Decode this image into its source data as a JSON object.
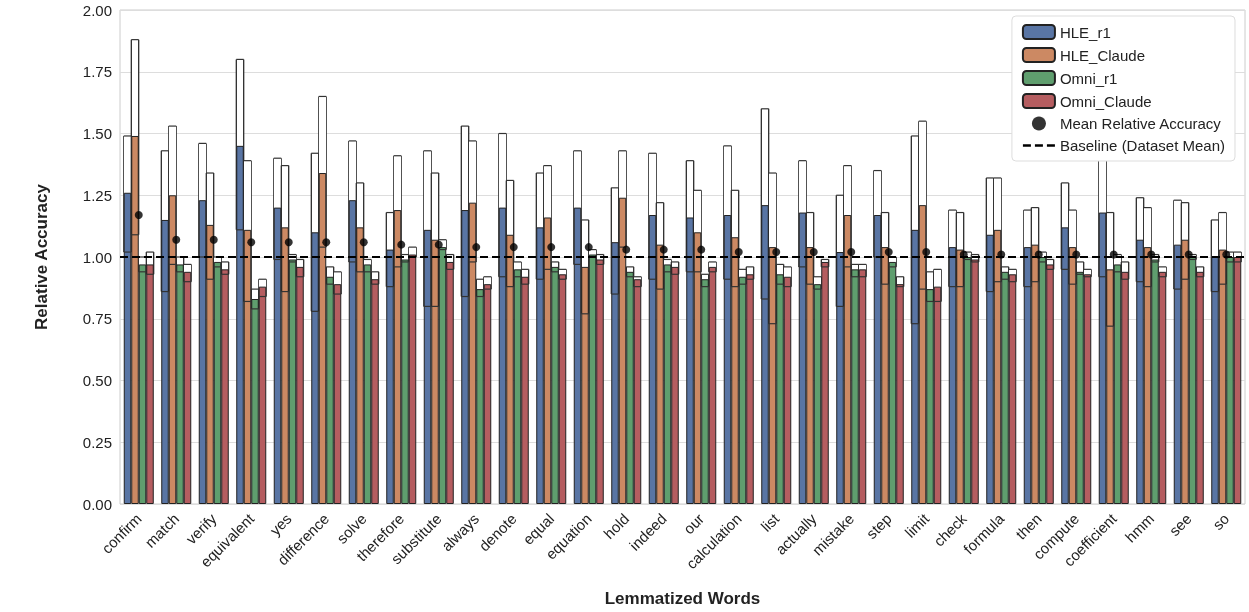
{
  "chart_data": {
    "type": "bar",
    "xlabel": "Lemmatized Words",
    "ylabel": "Relative Accuracy",
    "categories": [
      "confirm",
      "match",
      "verify",
      "equivalent",
      "yes",
      "difference",
      "solve",
      "therefore",
      "substitute",
      "always",
      "denote",
      "equal",
      "equation",
      "hold",
      "indeed",
      "our",
      "calculation",
      "list",
      "actually",
      "mistake",
      "step",
      "limit",
      "check",
      "formula",
      "then",
      "compute",
      "coefficient",
      "hmm",
      "see",
      "so"
    ],
    "series": [
      {
        "name": "HLE_r1",
        "color": "#5975a4",
        "values": [
          1.26,
          1.15,
          1.23,
          1.45,
          1.2,
          1.1,
          1.23,
          1.03,
          1.11,
          1.19,
          1.2,
          1.12,
          1.2,
          1.06,
          1.17,
          1.16,
          1.17,
          1.21,
          1.18,
          1.02,
          1.17,
          1.11,
          1.04,
          1.09,
          1.04,
          1.12,
          1.18,
          1.07,
          1.05,
          1.0
        ],
        "errors": [
          [
            1.02,
            1.49
          ],
          [
            0.86,
            1.43
          ],
          [
            1.0,
            1.46
          ],
          [
            1.11,
            1.8
          ],
          [
            0.99,
            1.4
          ],
          [
            0.78,
            1.42
          ],
          [
            0.98,
            1.47
          ],
          [
            0.88,
            1.18
          ],
          [
            0.8,
            1.43
          ],
          [
            0.84,
            1.53
          ],
          [
            0.92,
            1.5
          ],
          [
            0.91,
            1.34
          ],
          [
            0.97,
            1.43
          ],
          [
            0.85,
            1.28
          ],
          [
            0.91,
            1.42
          ],
          [
            0.94,
            1.39
          ],
          [
            0.91,
            1.45
          ],
          [
            0.83,
            1.6
          ],
          [
            0.96,
            1.39
          ],
          [
            0.8,
            1.25
          ],
          [
            1.0,
            1.35
          ],
          [
            0.73,
            1.49
          ],
          [
            0.88,
            1.19
          ],
          [
            0.86,
            1.32
          ],
          [
            0.88,
            1.19
          ],
          [
            0.95,
            1.3
          ],
          [
            0.92,
            1.45
          ],
          [
            0.9,
            1.24
          ],
          [
            0.87,
            1.23
          ],
          [
            0.86,
            1.15
          ]
        ]
      },
      {
        "name": "HLE_Claude",
        "color": "#cc8963",
        "values": [
          1.49,
          1.25,
          1.13,
          1.11,
          1.12,
          1.34,
          1.12,
          1.19,
          1.07,
          1.22,
          1.09,
          1.16,
          0.96,
          1.24,
          1.05,
          1.1,
          1.08,
          1.04,
          1.04,
          1.17,
          1.04,
          1.21,
          1.03,
          1.11,
          1.05,
          1.04,
          0.95,
          1.04,
          1.07,
          1.03
        ],
        "errors": [
          [
            1.09,
            1.88
          ],
          [
            0.97,
            1.53
          ],
          [
            0.91,
            1.34
          ],
          [
            0.82,
            1.39
          ],
          [
            0.86,
            1.37
          ],
          [
            1.04,
            1.65
          ],
          [
            0.94,
            1.3
          ],
          [
            0.96,
            1.41
          ],
          [
            0.8,
            1.34
          ],
          [
            0.98,
            1.47
          ],
          [
            0.88,
            1.31
          ],
          [
            0.95,
            1.37
          ],
          [
            0.77,
            1.15
          ],
          [
            1.04,
            1.43
          ],
          [
            0.87,
            1.22
          ],
          [
            0.94,
            1.27
          ],
          [
            0.88,
            1.27
          ],
          [
            0.73,
            1.34
          ],
          [
            0.89,
            1.18
          ],
          [
            0.96,
            1.37
          ],
          [
            0.89,
            1.18
          ],
          [
            0.87,
            1.55
          ],
          [
            0.88,
            1.18
          ],
          [
            0.9,
            1.32
          ],
          [
            0.9,
            1.2
          ],
          [
            0.89,
            1.19
          ],
          [
            0.72,
            1.18
          ],
          [
            0.88,
            1.2
          ],
          [
            0.91,
            1.22
          ],
          [
            0.89,
            1.18
          ]
        ]
      },
      {
        "name": "Omni_r1",
        "color": "#5f9e6e",
        "values": [
          0.97,
          0.97,
          0.98,
          0.83,
          0.99,
          0.92,
          0.97,
          0.99,
          1.04,
          0.87,
          0.95,
          0.96,
          1.01,
          0.94,
          0.97,
          0.91,
          0.92,
          0.93,
          0.89,
          0.95,
          0.98,
          0.87,
          1.0,
          0.94,
          1.0,
          0.94,
          0.97,
          0.99,
          1.0,
          1.0
        ],
        "errors": [
          [
            0.94,
            1.0
          ],
          [
            0.94,
            1.0
          ],
          [
            0.96,
            1.0
          ],
          [
            0.79,
            0.87
          ],
          [
            0.98,
            1.01
          ],
          [
            0.89,
            0.96
          ],
          [
            0.94,
            0.99
          ],
          [
            0.98,
            1.01
          ],
          [
            1.03,
            1.07
          ],
          [
            0.84,
            0.91
          ],
          [
            0.92,
            0.98
          ],
          [
            0.94,
            0.98
          ],
          [
            1.0,
            1.03
          ],
          [
            0.92,
            0.96
          ],
          [
            0.94,
            0.99
          ],
          [
            0.88,
            0.93
          ],
          [
            0.89,
            0.95
          ],
          [
            0.89,
            0.97
          ],
          [
            0.87,
            0.92
          ],
          [
            0.92,
            0.97
          ],
          [
            0.96,
            1.0
          ],
          [
            0.82,
            0.94
          ],
          [
            0.99,
            1.02
          ],
          [
            0.91,
            0.96
          ],
          [
            0.98,
            1.02
          ],
          [
            0.93,
            0.98
          ],
          [
            0.94,
            1.01
          ],
          [
            0.98,
            1.01
          ],
          [
            0.99,
            1.01
          ],
          [
            0.98,
            1.02
          ]
        ]
      },
      {
        "name": "Omni_Claude",
        "color": "#b55d60",
        "values": [
          0.97,
          0.94,
          0.95,
          0.88,
          0.96,
          0.89,
          0.91,
          1.01,
          0.98,
          0.89,
          0.92,
          0.93,
          0.99,
          0.91,
          0.96,
          0.96,
          0.93,
          0.92,
          0.98,
          0.95,
          0.89,
          0.88,
          0.99,
          0.93,
          0.97,
          0.93,
          0.94,
          0.94,
          0.94,
          1.0
        ],
        "errors": [
          [
            0.93,
            1.02
          ],
          [
            0.9,
            0.97
          ],
          [
            0.93,
            0.98
          ],
          [
            0.84,
            0.91
          ],
          [
            0.92,
            0.99
          ],
          [
            0.85,
            0.94
          ],
          [
            0.89,
            0.94
          ],
          [
            1.0,
            1.04
          ],
          [
            0.95,
            1.01
          ],
          [
            0.87,
            0.92
          ],
          [
            0.89,
            0.95
          ],
          [
            0.91,
            0.95
          ],
          [
            0.97,
            1.01
          ],
          [
            0.88,
            0.92
          ],
          [
            0.93,
            0.98
          ],
          [
            0.94,
            0.98
          ],
          [
            0.91,
            0.96
          ],
          [
            0.88,
            0.96
          ],
          [
            0.96,
            0.99
          ],
          [
            0.92,
            0.97
          ],
          [
            0.88,
            0.92
          ],
          [
            0.82,
            0.95
          ],
          [
            0.98,
            1.01
          ],
          [
            0.9,
            0.95
          ],
          [
            0.95,
            0.99
          ],
          [
            0.92,
            0.95
          ],
          [
            0.91,
            0.98
          ],
          [
            0.92,
            0.96
          ],
          [
            0.92,
            0.96
          ],
          [
            0.98,
            1.02
          ]
        ]
      },
      {
        "name": "Mean Relative Accuracy",
        "type": "scatter",
        "marker": "circle",
        "color": "#000000",
        "x": [
          "confirm",
          "match",
          "verify",
          "equivalent",
          "yes",
          "difference",
          "solve",
          "therefore",
          "substitute",
          "always",
          "denote",
          "equal",
          "equation",
          "hold",
          "indeed",
          "our",
          "calculation",
          "list",
          "actually",
          "mistake",
          "step",
          "limit",
          "check",
          "formula",
          "then",
          "compute",
          "coefficient",
          "hmm",
          "see",
          "so"
        ],
        "values": [
          1.17,
          1.07,
          1.07,
          1.06,
          1.06,
          1.06,
          1.06,
          1.05,
          1.05,
          1.04,
          1.04,
          1.04,
          1.04,
          1.03,
          1.03,
          1.03,
          1.02,
          1.02,
          1.02,
          1.02,
          1.02,
          1.02,
          1.01,
          1.01,
          1.01,
          1.01,
          1.01,
          1.01,
          1.01,
          1.01
        ]
      }
    ],
    "ref_lines": [
      {
        "axis": "y",
        "value": 1.0,
        "label": "Baseline (Dataset Mean)",
        "color": "#000000",
        "line_style": "dashed"
      }
    ],
    "ylim": [
      0,
      2
    ],
    "yticks": [
      {
        "value": 0,
        "label": "0.00"
      },
      {
        "value": 0.25,
        "label": "0.25"
      },
      {
        "value": 0.5,
        "label": "0.50"
      },
      {
        "value": 0.75,
        "label": "0.75"
      },
      {
        "value": 1,
        "label": "1.00"
      },
      {
        "value": 1.25,
        "label": "1.25"
      },
      {
        "value": 1.5,
        "label": "1.50"
      },
      {
        "value": 1.75,
        "label": "1.75"
      },
      {
        "value": 2,
        "label": "2.00"
      }
    ],
    "grid": "y",
    "legend": "top right"
  }
}
